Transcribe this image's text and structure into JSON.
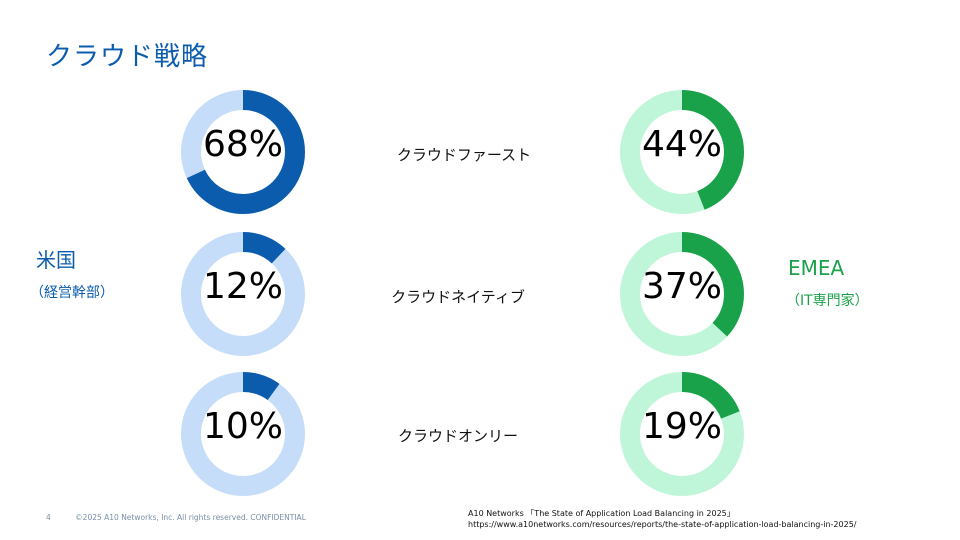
{
  "title": "クラウド戦略",
  "groups": {
    "us": {
      "label": "米国",
      "sub": "（経営幹部）",
      "color": "#0b5cad",
      "track": "#c5ddf8"
    },
    "emea": {
      "label": "EMEA",
      "sub": "（IT専門家）",
      "color": "#1aa24a",
      "track": "#bff5d8"
    }
  },
  "chart_data": {
    "type": "pie",
    "categories": [
      "クラウドファースト",
      "クラウドネイティブ",
      "クラウドオンリー"
    ],
    "series": [
      {
        "name": "米国",
        "values": [
          68,
          12,
          10
        ],
        "labels": [
          "68%",
          "12%",
          "10%"
        ]
      },
      {
        "name": "EMEA",
        "values": [
          44,
          37,
          19
        ],
        "labels": [
          "44%",
          "37%",
          "19%"
        ]
      }
    ]
  },
  "footer": {
    "page": "4",
    "copyright": "©2025 A10 Networks, Inc. All rights reserved. CONFIDENTIAL",
    "source_line1": "A10 Networks 「The State of Application Load Balancing in 2025」",
    "source_line2": "https://www.a10networks.com/resources/reports/the-state-of-application-load-balancing-in-2025/"
  }
}
